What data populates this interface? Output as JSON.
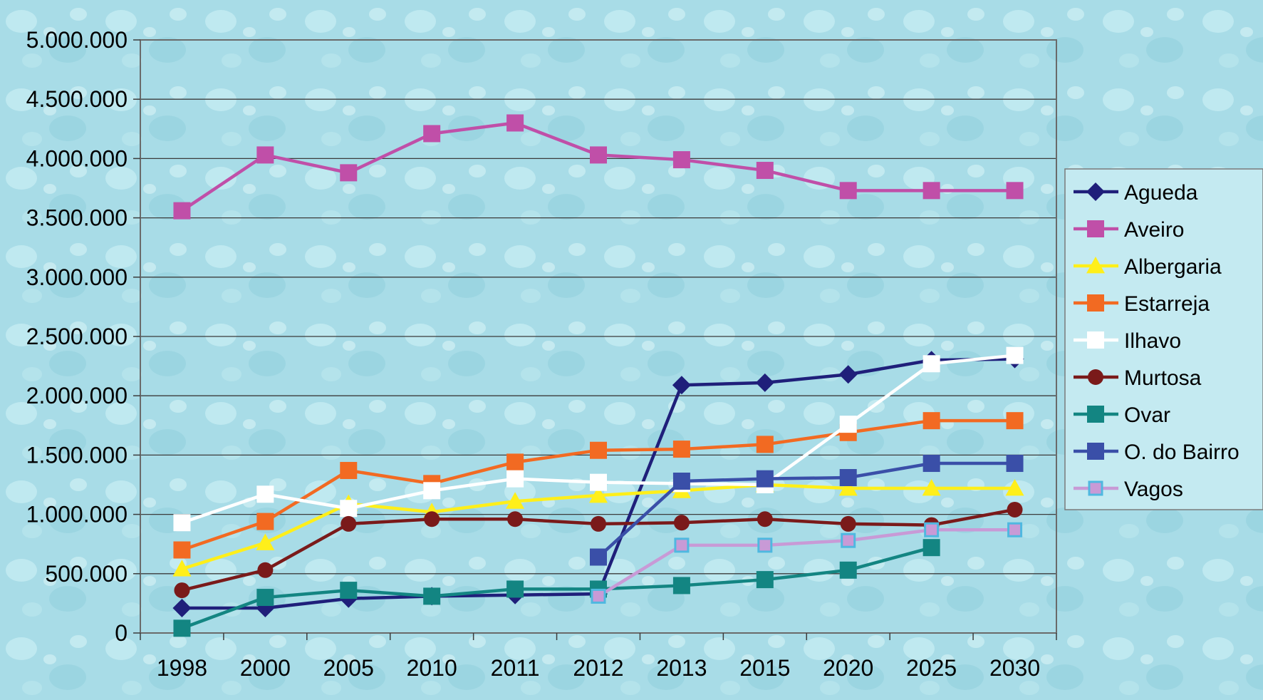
{
  "chart_data": {
    "type": "line",
    "title": "",
    "xlabel": "",
    "ylabel": "",
    "categories": [
      "1998",
      "2000",
      "2005",
      "2010",
      "2011",
      "2012",
      "2013",
      "2015",
      "2020",
      "2025",
      "2030"
    ],
    "ylim": [
      0,
      5000000
    ],
    "yticks": [
      0,
      500000,
      1000000,
      1500000,
      2000000,
      2500000,
      3000000,
      3500000,
      4000000,
      4500000,
      5000000
    ],
    "ytick_labels": [
      "0",
      "500.000",
      "1.000.000",
      "1.500.000",
      "2.000.000",
      "2.500.000",
      "3.000.000",
      "3.500.000",
      "4.000.000",
      "4.500.000",
      "5.000.000"
    ],
    "grid": "horizontal",
    "legend_position": "right",
    "series": [
      {
        "name": "Agueda",
        "color": "#1f1f7a",
        "marker": "diamond",
        "values": [
          210000,
          210000,
          290000,
          310000,
          320000,
          330000,
          2090000,
          2110000,
          2180000,
          2300000,
          2310000
        ]
      },
      {
        "name": "Aveiro",
        "color": "#c04fa8",
        "marker": "square",
        "values": [
          3560000,
          4030000,
          3880000,
          4210000,
          4300000,
          4030000,
          3990000,
          3900000,
          3730000,
          3730000,
          3730000
        ]
      },
      {
        "name": "Albergaria",
        "color": "#ffef1a",
        "marker": "triangle",
        "values": [
          540000,
          760000,
          1090000,
          1020000,
          1110000,
          1160000,
          1200000,
          1250000,
          1220000,
          1220000,
          1220000
        ]
      },
      {
        "name": "Estarreja",
        "color": "#f26a22",
        "marker": "square",
        "values": [
          700000,
          940000,
          1370000,
          1260000,
          1440000,
          1540000,
          1550000,
          1590000,
          1690000,
          1790000,
          1790000
        ]
      },
      {
        "name": "Ilhavo",
        "color": "#ffffff",
        "marker": "square",
        "values": [
          930000,
          1170000,
          1050000,
          1200000,
          1300000,
          1270000,
          1260000,
          1250000,
          1760000,
          2270000,
          2340000
        ]
      },
      {
        "name": "Murtosa",
        "color": "#7a1a1a",
        "marker": "circle",
        "values": [
          360000,
          530000,
          920000,
          960000,
          960000,
          920000,
          930000,
          960000,
          920000,
          910000,
          1040000
        ]
      },
      {
        "name": "Ovar",
        "color": "#138582",
        "marker": "square",
        "values": [
          40000,
          300000,
          360000,
          310000,
          370000,
          370000,
          400000,
          450000,
          530000,
          720000,
          null
        ]
      },
      {
        "name": "O. do Bairro",
        "color": "#3a4fa8",
        "marker": "square",
        "values": [
          null,
          null,
          null,
          null,
          null,
          640000,
          1280000,
          1300000,
          1310000,
          1430000,
          1430000
        ]
      },
      {
        "name": "Vagos",
        "color": "#c89ad6",
        "marker": "square-outline",
        "values": [
          null,
          null,
          null,
          null,
          null,
          310000,
          740000,
          740000,
          780000,
          870000,
          870000
        ]
      }
    ]
  }
}
